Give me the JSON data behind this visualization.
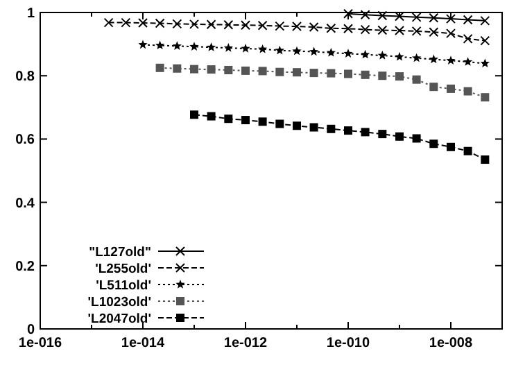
{
  "chart_data": {
    "type": "line",
    "log": "x",
    "grid": false,
    "legend": "bottom left",
    "xlim": [
      1e-16,
      1e-07
    ],
    "ylim": [
      0,
      1
    ],
    "xticks": [
      {
        "value": 1e-16,
        "label": "1e-016"
      },
      {
        "value": 1e-15,
        "label": null
      },
      {
        "value": 1e-14,
        "label": "1e-014"
      },
      {
        "value": 1e-13,
        "label": null
      },
      {
        "value": 1e-12,
        "label": "1e-012"
      },
      {
        "value": 1e-11,
        "label": null
      },
      {
        "value": 1e-10,
        "label": "1e-010"
      },
      {
        "value": 1e-09,
        "label": null
      },
      {
        "value": 1e-08,
        "label": "1e-008"
      }
    ],
    "yticks": [
      0,
      0.2,
      0.4,
      0.6,
      0.8,
      1
    ],
    "series": [
      {
        "name": "\"L127old\"",
        "color": "#000000",
        "marker": "cross",
        "line_style": "solid",
        "x": [
          1e-10,
          2.15e-10,
          4.64e-10,
          1e-09,
          2.15e-09,
          4.64e-09,
          1e-08,
          2.15e-08,
          4.64e-08
        ],
        "values": [
          0.996,
          0.993,
          0.99,
          0.988,
          0.985,
          0.983,
          0.98,
          0.977,
          0.974
        ]
      },
      {
        "name": "'L255old'",
        "color": "#000000",
        "marker": "cross",
        "line_style": "dashed",
        "x": [
          2.15e-15,
          4.64e-15,
          1e-14,
          2.15e-14,
          4.64e-14,
          1e-13,
          2.15e-13,
          4.64e-13,
          1e-12,
          2.15e-12,
          4.64e-12,
          1e-11,
          2.15e-11,
          4.64e-11,
          1e-10,
          2.15e-10,
          4.64e-10,
          1e-09,
          2.15e-09,
          4.64e-09,
          1e-08,
          2.15e-08,
          4.64e-08
        ],
        "values": [
          0.968,
          0.968,
          0.967,
          0.966,
          0.964,
          0.963,
          0.962,
          0.961,
          0.96,
          0.959,
          0.957,
          0.956,
          0.954,
          0.95,
          0.949,
          0.946,
          0.944,
          0.943,
          0.941,
          0.938,
          0.934,
          0.917,
          0.911
        ]
      },
      {
        "name": "'L511old'",
        "color": "#000000",
        "marker": "star",
        "line_style": "dotted",
        "x": [
          1e-14,
          2.15e-14,
          4.64e-14,
          1e-13,
          2.15e-13,
          4.64e-13,
          1e-12,
          2.15e-12,
          4.64e-12,
          1e-11,
          2.15e-11,
          4.64e-11,
          1e-10,
          2.15e-10,
          4.64e-10,
          1e-09,
          2.15e-09,
          4.64e-09,
          1e-08,
          2.15e-08,
          4.64e-08
        ],
        "values": [
          0.898,
          0.896,
          0.894,
          0.892,
          0.89,
          0.888,
          0.886,
          0.884,
          0.88,
          0.878,
          0.876,
          0.873,
          0.87,
          0.867,
          0.864,
          0.86,
          0.856,
          0.852,
          0.848,
          0.844,
          0.839
        ]
      },
      {
        "name": "'L1023old'",
        "color": "#555555",
        "marker": "square",
        "line_style": "dotted",
        "x": [
          2.15e-14,
          4.64e-14,
          1e-13,
          2.15e-13,
          4.64e-13,
          1e-12,
          2.15e-12,
          4.64e-12,
          1e-11,
          2.15e-11,
          4.64e-11,
          1e-10,
          2.15e-10,
          4.64e-10,
          1e-09,
          2.15e-09,
          4.64e-09,
          1e-08,
          2.15e-08,
          4.64e-08
        ],
        "values": [
          0.825,
          0.823,
          0.821,
          0.82,
          0.818,
          0.816,
          0.815,
          0.812,
          0.811,
          0.809,
          0.808,
          0.806,
          0.803,
          0.8,
          0.798,
          0.788,
          0.765,
          0.759,
          0.751,
          0.732
        ]
      },
      {
        "name": "'L2047old'",
        "color": "#000000",
        "marker": "square",
        "line_style": "dashed",
        "x": [
          1e-13,
          2.15e-13,
          4.64e-13,
          1e-12,
          2.15e-12,
          4.64e-12,
          1e-11,
          2.15e-11,
          4.64e-11,
          1e-10,
          2.15e-10,
          4.64e-10,
          1e-09,
          2.15e-09,
          4.64e-09,
          1e-08,
          2.15e-08,
          4.64e-08
        ],
        "values": [
          0.677,
          0.672,
          0.664,
          0.66,
          0.655,
          0.648,
          0.642,
          0.637,
          0.632,
          0.627,
          0.622,
          0.616,
          0.608,
          0.602,
          0.585,
          0.575,
          0.562,
          0.535
        ]
      }
    ]
  }
}
